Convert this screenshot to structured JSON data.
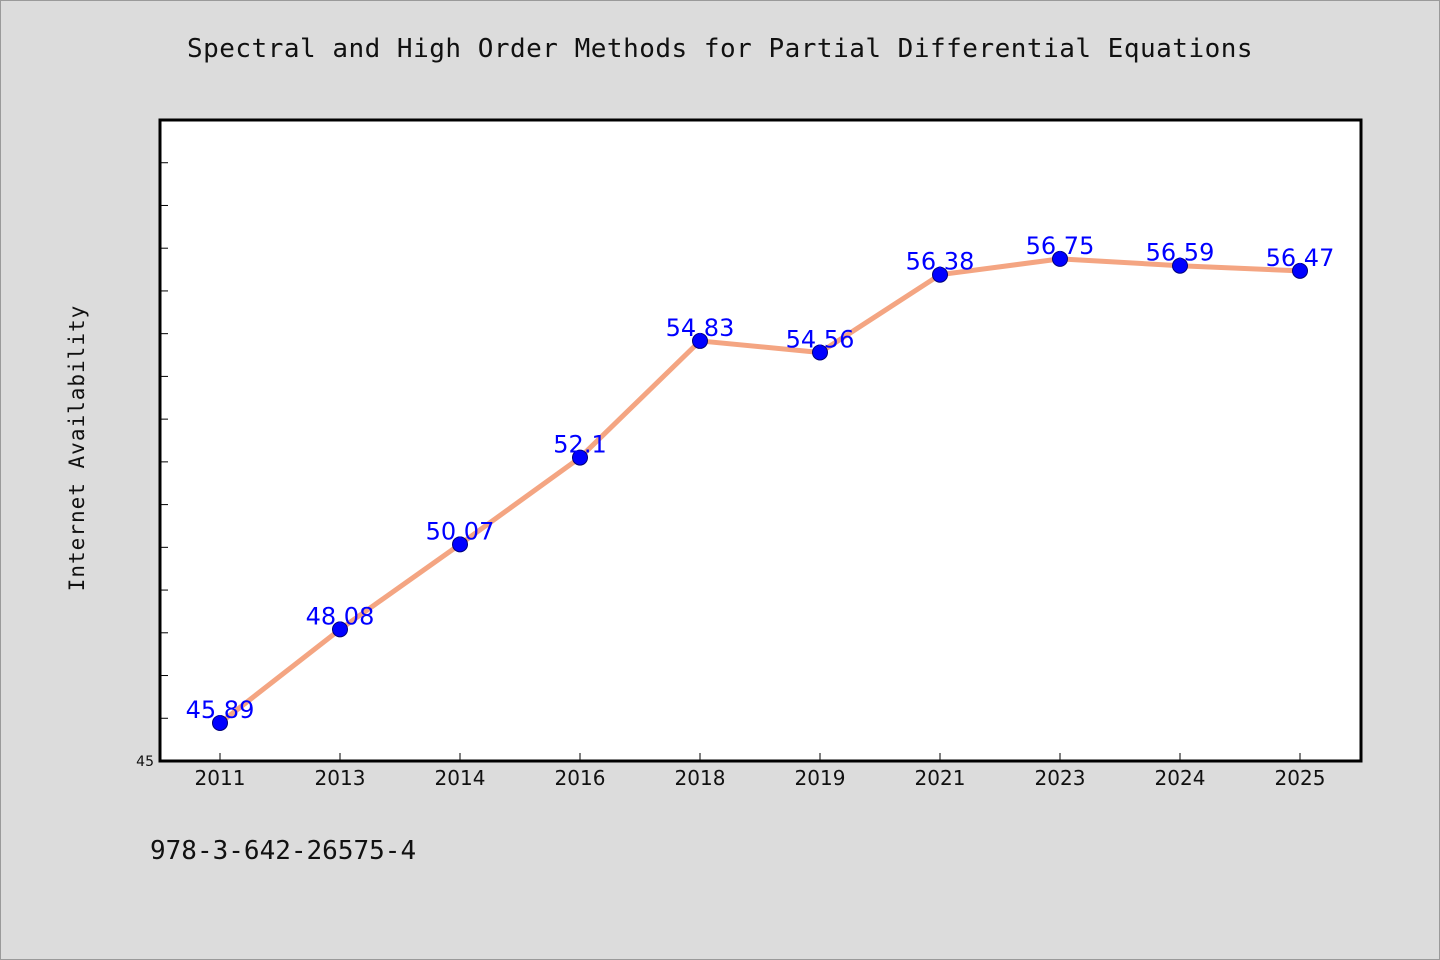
{
  "chart_data": {
    "type": "line",
    "title": "Spectral and High Order Methods for Partial Differential Equations",
    "ylabel": "Internet Availability",
    "xlabel": "",
    "categories": [
      "2011",
      "2013",
      "2014",
      "2016",
      "2018",
      "2019",
      "2021",
      "2023",
      "2024",
      "2025"
    ],
    "series": [
      {
        "values": [
          45.89,
          48.08,
          50.07,
          52.1,
          54.83,
          54.56,
          56.38,
          56.75,
          56.59,
          56.47
        ],
        "labels": [
          "45.89",
          "48.08",
          "50.07",
          "52.1",
          "54.83",
          "54.56",
          "56.38",
          "56.75",
          "56.59",
          "56.47"
        ]
      }
    ],
    "ylim": [
      45,
      60
    ],
    "y_tick_labels": [
      "45"
    ],
    "grid": false,
    "colors": {
      "line": "#f4a582",
      "marker": "#0000ff",
      "data_label": "#0000ff",
      "plot_background": "#ffffff",
      "page_background": "#dcdcdc"
    }
  },
  "footer": {
    "isbn": "978-3-642-26575-4"
  }
}
